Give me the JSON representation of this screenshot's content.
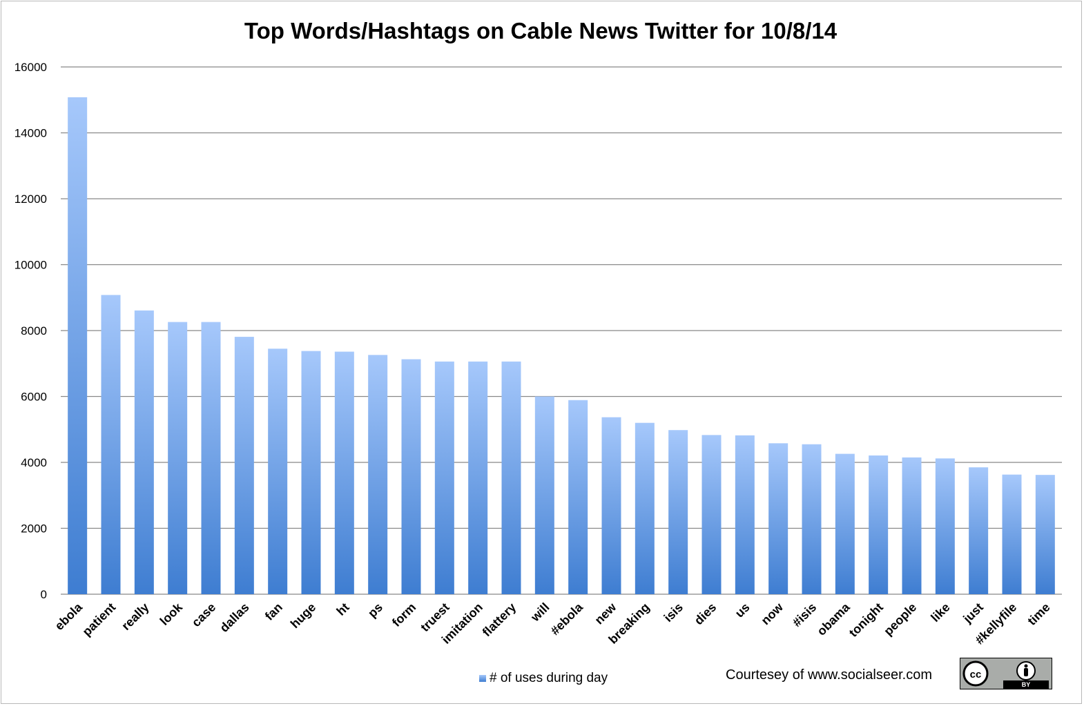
{
  "chart_data": {
    "type": "bar",
    "title": "Top Words/Hashtags on Cable News Twitter for 10/8/14",
    "xlabel": "",
    "ylabel": "",
    "ylim": [
      0,
      16000
    ],
    "yticks": [
      "0",
      "2000",
      "4000",
      "6000",
      "8000",
      "10000",
      "12000",
      "14000",
      "16000"
    ],
    "grid": true,
    "legend_position": "bottom",
    "categories": [
      "ebola",
      "patient",
      "really",
      "look",
      "case",
      "dallas",
      "fan",
      "huge",
      "ht",
      "ps",
      "form",
      "truest",
      "imitation",
      "flattery",
      "will",
      "#ebola",
      "new",
      "breaking",
      "isis",
      "dies",
      "us",
      "now",
      "#isis",
      "obama",
      "tonight",
      "people",
      "like",
      "just",
      "#kellyfile",
      "time"
    ],
    "series": [
      {
        "name": "# of uses during day",
        "values": [
          15080,
          9080,
          8610,
          8260,
          8260,
          7810,
          7450,
          7380,
          7360,
          7260,
          7130,
          7060,
          7060,
          7060,
          6000,
          5890,
          5370,
          5200,
          4980,
          4830,
          4820,
          4580,
          4550,
          4260,
          4210,
          4150,
          4120,
          3850,
          3630,
          3620
        ]
      }
    ],
    "colors": {
      "bar_top": "#a6c8fb",
      "bar_bottom": "#3e7dd1",
      "grid": "#888888"
    }
  },
  "footer": {
    "credit": "Courtesey of www.socialseer.com",
    "license_badge": {
      "icon": "cc-by-icon",
      "label": "BY"
    }
  }
}
